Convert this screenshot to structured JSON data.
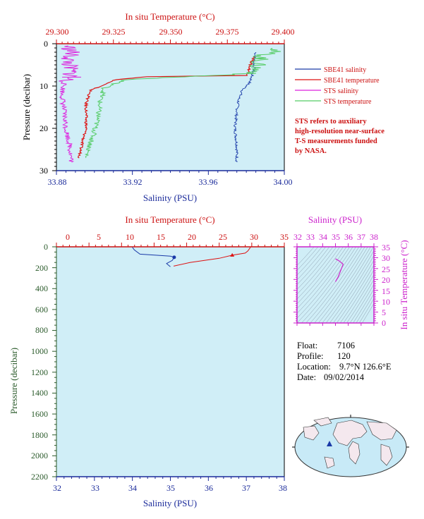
{
  "top_chart": {
    "top_axis_title": "In situ Temperature (°C)",
    "top_ticks": [
      "29.300",
      "29.325",
      "29.350",
      "29.375",
      "29.400"
    ],
    "bottom_axis_title": "Salinity (PSU)",
    "bottom_ticks": [
      "33.88",
      "33.92",
      "33.96",
      "34.00"
    ],
    "y_axis_title": "Pressure (decibar)",
    "y_ticks": [
      "0",
      "10",
      "20",
      "30"
    ],
    "legend": [
      {
        "label": "SBE41 salinity",
        "color": "#1a3aa8"
      },
      {
        "label": "SBE41 temperature",
        "color": "#dd1111"
      },
      {
        "label": "STS salinity",
        "color": "#dd22dd"
      },
      {
        "label": "STS temperature",
        "color": "#55cc66"
      }
    ],
    "note_lines": [
      "STS refers to auxiliary",
      "high-resolution near-surface",
      "T-S measurements funded",
      "by NASA."
    ]
  },
  "bottom_chart": {
    "top_axis_title": "In situ Temperature (°C)",
    "top_ticks": [
      "0",
      "5",
      "10",
      "15",
      "20",
      "25",
      "30",
      "35"
    ],
    "bottom_axis_title": "Salinity (PSU)",
    "bottom_ticks": [
      "32",
      "33",
      "34",
      "35",
      "36",
      "37",
      "38"
    ],
    "y_axis_title": "Pressure (decibar)",
    "y_ticks": [
      "0",
      "200",
      "400",
      "600",
      "800",
      "1000",
      "1200",
      "1400",
      "1600",
      "1800",
      "2000",
      "2200"
    ]
  },
  "ts_inset": {
    "top_axis_title": "Salinity (PSU)",
    "top_ticks": [
      "32",
      "33",
      "34",
      "35",
      "36",
      "37",
      "38"
    ],
    "right_axis_title": "In situ Temperature (°C)",
    "right_ticks": [
      "35",
      "30",
      "25",
      "20",
      "15",
      "10",
      "5",
      "0"
    ]
  },
  "info": {
    "float_label": "Float:",
    "float_value": "7106",
    "profile_label": "Profile:",
    "profile_value": "120",
    "location_label": "Location:",
    "location_value": "9.7°N  126.6°E",
    "date_label": "Date:",
    "date_value": "09/02/2014"
  },
  "chart_data": [
    {
      "type": "line",
      "title": "",
      "xlabel": "Salinity (PSU)",
      "x2label": "In situ Temperature (°C)",
      "ylabel": "Pressure (decibar)",
      "xlim": [
        33.88,
        34.0
      ],
      "x2lim": [
        29.3,
        29.4
      ],
      "ylim": [
        30,
        0
      ],
      "series": [
        {
          "name": "SBE41 salinity",
          "axis": "salinity",
          "points": [
            [
              33.985,
              2
            ],
            [
              33.984,
              4
            ],
            [
              33.984,
              6
            ],
            [
              33.983,
              7.5
            ],
            [
              33.982,
              9
            ],
            [
              33.978,
              11
            ],
            [
              33.976,
              13
            ],
            [
              33.975,
              16
            ],
            [
              33.974,
              20
            ],
            [
              33.975,
              24
            ],
            [
              33.975,
              28
            ]
          ]
        },
        {
          "name": "SBE41 temperature",
          "axis": "temperature",
          "points": [
            [
              29.387,
              3
            ],
            [
              29.385,
              5
            ],
            [
              29.384,
              7.5
            ],
            [
              29.34,
              7.8
            ],
            [
              29.326,
              8.5
            ],
            [
              29.315,
              11
            ],
            [
              29.313,
              14
            ],
            [
              29.313,
              20
            ],
            [
              29.311,
              24
            ],
            [
              29.31,
              27
            ]
          ]
        },
        {
          "name": "STS salinity",
          "axis": "salinity",
          "points": [
            [
              33.886,
              0.5
            ],
            [
              33.888,
              2
            ],
            [
              33.886,
              4
            ],
            [
              33.887,
              6
            ],
            [
              33.888,
              7.8
            ],
            [
              33.884,
              9
            ],
            [
              33.883,
              12
            ],
            [
              33.884,
              16
            ],
            [
              33.885,
              20
            ],
            [
              33.887,
              24
            ],
            [
              33.888,
              28
            ]
          ]
        },
        {
          "name": "STS temperature",
          "axis": "temperature",
          "points": [
            [
              29.398,
              1
            ],
            [
              29.39,
              3
            ],
            [
              29.388,
              5
            ],
            [
              29.387,
              7
            ],
            [
              29.33,
              8.5
            ],
            [
              29.321,
              10.5
            ],
            [
              29.319,
              14
            ],
            [
              29.318,
              18
            ],
            [
              29.316,
              22
            ],
            [
              29.314,
              25
            ],
            [
              29.313,
              27
            ]
          ]
        }
      ]
    },
    {
      "type": "line",
      "title": "",
      "xlabel": "Salinity (PSU)",
      "x2label": "In situ Temperature (°C)",
      "ylabel": "Pressure (decibar)",
      "xlim": [
        32,
        38
      ],
      "x2lim": [
        0,
        35
      ],
      "ylim": [
        2200,
        0
      ],
      "series": [
        {
          "name": "salinity",
          "axis": "salinity",
          "points": [
            [
              34.0,
              5
            ],
            [
              34.05,
              30
            ],
            [
              34.2,
              70
            ],
            [
              35.0,
              90
            ],
            [
              35.1,
              100
            ],
            [
              35.05,
              130
            ],
            [
              34.9,
              160
            ],
            [
              35.0,
              190
            ]
          ]
        },
        {
          "name": "temperature",
          "axis": "temperature",
          "points": [
            [
              29.8,
              5
            ],
            [
              29.4,
              40
            ],
            [
              29.0,
              60
            ],
            [
              27,
              80
            ],
            [
              25,
              110
            ],
            [
              20.5,
              150
            ],
            [
              18,
              185
            ]
          ]
        }
      ]
    },
    {
      "type": "line",
      "title": "",
      "xlabel": "Salinity (PSU)",
      "ylabel": "In situ Temperature (°C)",
      "xlim": [
        32,
        38
      ],
      "ylim": [
        0,
        35
      ],
      "series": [
        {
          "name": "T-S",
          "axis": "ts",
          "points": [
            [
              35.0,
              29.5
            ],
            [
              35.3,
              28.5
            ],
            [
              35.6,
              27
            ],
            [
              35.4,
              24
            ],
            [
              35.2,
              21
            ],
            [
              35.0,
              19
            ]
          ]
        }
      ]
    }
  ]
}
